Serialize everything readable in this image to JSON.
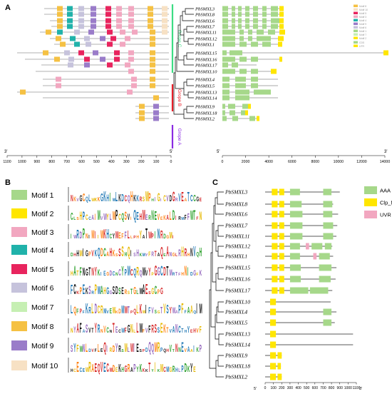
{
  "panels": {
    "a": "A",
    "b": "B",
    "c": "C"
  },
  "genes_a": [
    "PbSMXL3",
    "PbSMXL8",
    "PbSMXL6",
    "PbSMXL7",
    "PbSMXL11",
    "PbSMXL12",
    "PbSMXL1",
    "PbSMXL15",
    "PbSMXL16",
    "PbSMXL17",
    "PbSMXL10",
    "PbSMXL4",
    "PbSMXL5",
    "PbSMXL13",
    "PbSMXL14",
    "PbSMXL9",
    "PbSMXL18",
    "PbSMXL2"
  ],
  "genes_c": [
    "PbSMXL3",
    "PbSMXL8",
    "PbSMXL6",
    "PbSMXL7",
    "PbSMXL11",
    "PbSMXL12",
    "PbSMXL1",
    "PbSMXL15",
    "PbSMXL16",
    "PbSMXL17",
    "PbSMXL10",
    "PbSMXL4",
    "PbSMXL5",
    "PbSMXL13",
    "PbSMXL14",
    "PbSMXL9",
    "PbSMXL18",
    "PbSMXL2"
  ],
  "groups": [
    {
      "label": "Grope C",
      "color": "#3ddc84"
    },
    {
      "label": "Grope B",
      "color": "#e8202a"
    },
    {
      "label": "Grope A",
      "color": "#8a2be2"
    }
  ],
  "axis_a_left": {
    "ticks": [
      "1100",
      "1000",
      "900",
      "800",
      "700",
      "600",
      "500",
      "400",
      "300",
      "200",
      "100",
      "0"
    ],
    "end_label": "3'",
    "start_label": "5'"
  },
  "axis_a_right": {
    "ticks": [
      "0",
      "2000",
      "4000",
      "6000",
      "8000",
      "10000",
      "12000",
      "14000"
    ],
    "start_label": "5'",
    "end_label": "3'"
  },
  "legend_a_motifs": [
    "Motif 8",
    "Motif 10",
    "Motif 5",
    "Motif 3",
    "Motif 4",
    "Motif 9",
    "Motif 6",
    "Motif 1",
    "Motif 7",
    "Motif 2"
  ],
  "legend_a_struct": [
    "CDS",
    "UTR"
  ],
  "legend_b": [
    {
      "label": "Motif 1",
      "color": "#a6d88a"
    },
    {
      "label": "Motif 2",
      "color": "#ffe600"
    },
    {
      "label": "Motif 3",
      "color": "#f2a7c0"
    },
    {
      "label": "Motif 4",
      "color": "#20b2aa"
    },
    {
      "label": "Motif 5",
      "color": "#e8245e"
    },
    {
      "label": "Motif 6",
      "color": "#c6c3dc"
    },
    {
      "label": "Motif 7",
      "color": "#c6efb3"
    },
    {
      "label": "Motif 8",
      "color": "#f5c143"
    },
    {
      "label": "Motif 9",
      "color": "#9a7cc9"
    },
    {
      "label": "Motif 10",
      "color": "#f7e1c4"
    }
  ],
  "legend_c": [
    {
      "label": "AAA",
      "color": "#a6d88a"
    },
    {
      "label": "Clp_N",
      "color": "#ffe600"
    },
    {
      "label": "UVR",
      "color": "#f2a7c0"
    }
  ],
  "axis_c": {
    "ticks": [
      "0",
      "100",
      "200",
      "300",
      "400",
      "500",
      "600",
      "700",
      "800",
      "900",
      "1000",
      "1100"
    ],
    "start_label": "5'",
    "end_label": "3'"
  },
  "colors": {
    "group_c": "#3ddc84",
    "group_b": "#e8202a",
    "group_a": "#8a2be2",
    "aaa": "#a6d88a",
    "clp_n": "#ffe600",
    "uvr": "#f2a7c0"
  }
}
